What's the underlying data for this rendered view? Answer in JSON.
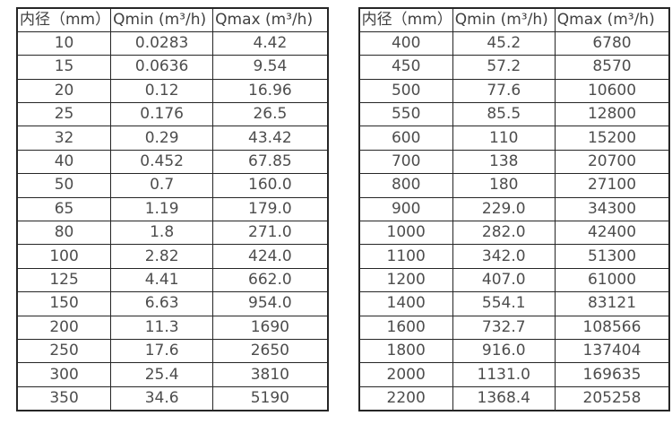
{
  "colors": {
    "border": "#262626",
    "text": "#4d4d4d",
    "header_text": "#404040",
    "background": "#ffffff"
  },
  "chart_data": [
    {
      "type": "table",
      "title": "",
      "columns": [
        "内径（mm）",
        "Qmin (m³/h)",
        "Qmax (m³/h)"
      ],
      "rows": [
        [
          "10",
          "0.0283",
          "4.42"
        ],
        [
          "15",
          "0.0636",
          "9.54"
        ],
        [
          "20",
          "0.12",
          "16.96"
        ],
        [
          "25",
          "0.176",
          "26.5"
        ],
        [
          "32",
          "0.29",
          "43.42"
        ],
        [
          "40",
          "0.452",
          "67.85"
        ],
        [
          "50",
          "0.7",
          "160.0"
        ],
        [
          "65",
          "1.19",
          "179.0"
        ],
        [
          "80",
          "1.8",
          "271.0"
        ],
        [
          "100",
          "2.82",
          "424.0"
        ],
        [
          "125",
          "4.41",
          "662.0"
        ],
        [
          "150",
          "6.63",
          "954.0"
        ],
        [
          "200",
          "11.3",
          "1690"
        ],
        [
          "250",
          "17.6",
          "2650"
        ],
        [
          "300",
          "25.4",
          "3810"
        ],
        [
          "350",
          "34.6",
          "5190"
        ]
      ]
    },
    {
      "type": "table",
      "title": "",
      "columns": [
        "内径（mm）",
        "Qmin (m³/h)",
        "Qmax (m³/h)"
      ],
      "rows": [
        [
          "400",
          "45.2",
          "6780"
        ],
        [
          "450",
          "57.2",
          "8570"
        ],
        [
          "500",
          "77.6",
          "10600"
        ],
        [
          "550",
          "85.5",
          "12800"
        ],
        [
          "600",
          "110",
          "15200"
        ],
        [
          "700",
          "138",
          "20700"
        ],
        [
          "800",
          "180",
          "27100"
        ],
        [
          "900",
          "229.0",
          "34300"
        ],
        [
          "1000",
          "282.0",
          "42400"
        ],
        [
          "1100",
          "342.0",
          "51300"
        ],
        [
          "1200",
          "407.0",
          "61000"
        ],
        [
          "1400",
          "554.1",
          "83121"
        ],
        [
          "1600",
          "732.7",
          "108566"
        ],
        [
          "1800",
          "916.0",
          "137404"
        ],
        [
          "2000",
          "1131.0",
          "169635"
        ],
        [
          "2200",
          "1368.4",
          "205258"
        ]
      ]
    }
  ]
}
